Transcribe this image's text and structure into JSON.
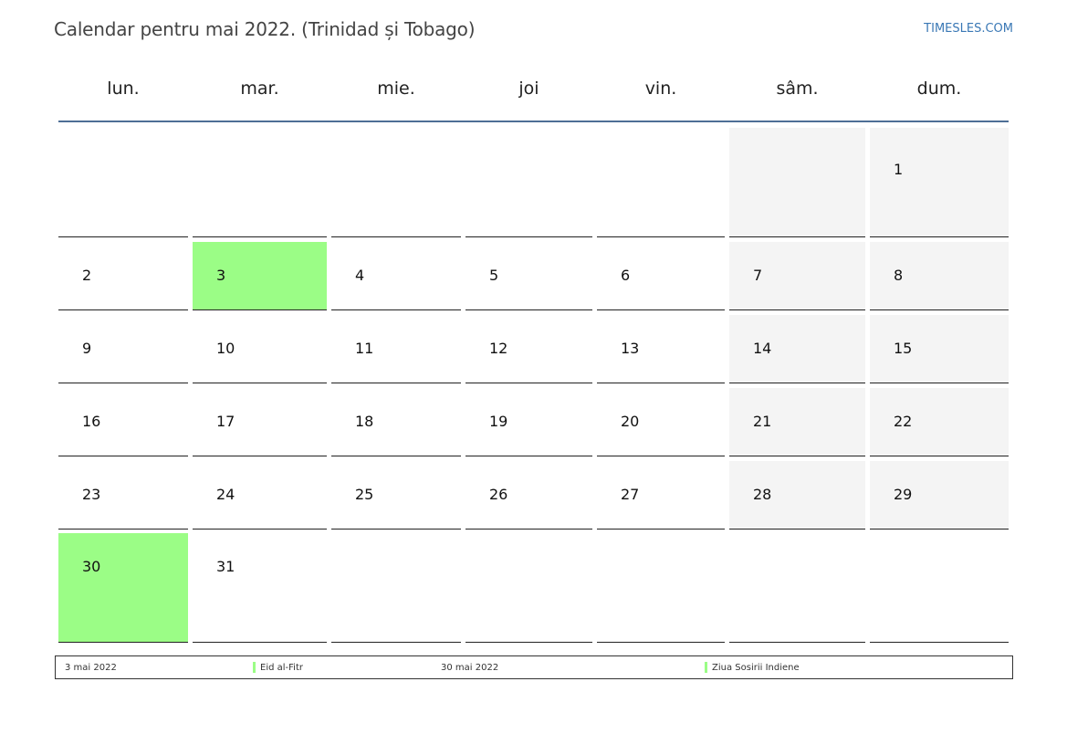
{
  "header": {
    "title": "Calendar pentru mai 2022. (Trinidad și Tobago)",
    "brand": "TIMESLES.COM"
  },
  "weekdays": [
    "lun.",
    "mar.",
    "mie.",
    "joi",
    "vin.",
    "sâm.",
    "dum."
  ],
  "weeks": [
    [
      "",
      "",
      "",
      "",
      "",
      "",
      "1"
    ],
    [
      "2",
      "3",
      "4",
      "5",
      "6",
      "7",
      "8"
    ],
    [
      "9",
      "10",
      "11",
      "12",
      "13",
      "14",
      "15"
    ],
    [
      "16",
      "17",
      "18",
      "19",
      "20",
      "21",
      "22"
    ],
    [
      "23",
      "24",
      "25",
      "26",
      "27",
      "28",
      "29"
    ],
    [
      "30",
      "31",
      "",
      "",
      "",
      "",
      ""
    ]
  ],
  "holiday_days": [
    "3",
    "30"
  ],
  "colors": {
    "holiday": "#9bfd86",
    "weekend": "#f4f4f4",
    "header_rule": "#4e6f96",
    "brand": "#3a78b5"
  },
  "legend": {
    "date1": "3 mai 2022",
    "name1": "Eid al-Fitr",
    "date2": "30 mai 2022",
    "name2": "Ziua Sosirii Indiene"
  }
}
